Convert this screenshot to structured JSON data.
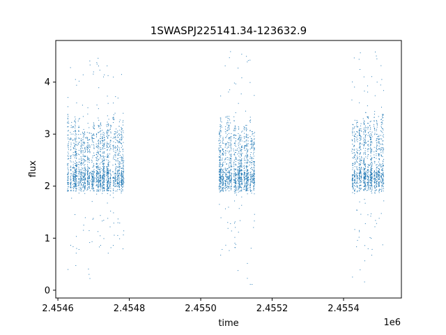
{
  "chart_data": {
    "type": "scatter",
    "title": "1SWASPJ225141.34-123632.9",
    "xlabel": "time",
    "ylabel": "flux",
    "x_offset_label": "1e6",
    "xlim": [
      2454594,
      2455562
    ],
    "ylim": [
      -0.15,
      4.8
    ],
    "x_ticks": [
      2454600,
      2454800,
      2455000,
      2455200,
      2455400
    ],
    "x_tick_labels": [
      "2.4546",
      "2.4548",
      "2.4550",
      "2.4552",
      "2.4554"
    ],
    "y_ticks": [
      0,
      1,
      2,
      3,
      4
    ],
    "y_tick_labels": [
      "0",
      "1",
      "2",
      "3",
      "4"
    ],
    "grid": false,
    "marker_color": "#1f77b4",
    "series": [
      {
        "x_ranges": [
          [
            2454628,
            2454788
          ],
          [
            2455050,
            2455155
          ],
          [
            2455424,
            2455514
          ]
        ],
        "flux_core_range": [
          1.9,
          3.4
        ],
        "flux_outlier_range": [
          0.1,
          4.6
        ]
      }
    ]
  }
}
